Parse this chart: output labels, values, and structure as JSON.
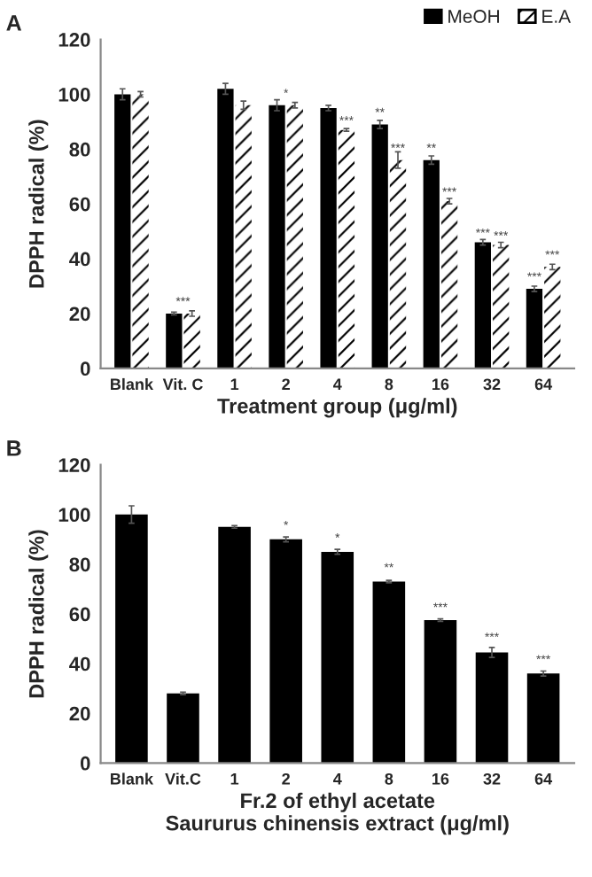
{
  "chart_data": [
    {
      "type": "bar",
      "xlabel": "Treatment group (μg/ml)",
      "ylabel": "DPPH radical (%)",
      "categories": [
        "Blank",
        "Vit. C",
        "1",
        "2",
        "4",
        "8",
        "16",
        "32",
        "64"
      ],
      "series": [
        {
          "name": "MeOH",
          "color": "#000000",
          "values": [
            100,
            20,
            102,
            96,
            95,
            89,
            76,
            46,
            29
          ],
          "errors": [
            2,
            0.5,
            2,
            2,
            1,
            1.5,
            1.5,
            1,
            1
          ]
        },
        {
          "name": "E.A",
          "color": "#ffffff",
          "values": [
            100,
            20,
            96,
            96,
            87,
            76,
            61,
            45,
            37
          ],
          "errors": [
            1,
            1,
            1.5,
            1,
            0.5,
            3,
            1,
            1,
            1
          ]
        }
      ],
      "ylim": [
        0,
        120
      ],
      "yticks": [
        0,
        20,
        40,
        60,
        80,
        100,
        120
      ],
      "grid": false,
      "legend": "top right",
      "annotations": [
        "A",
        {
          "text": "***",
          "x": "Vit. C",
          "y": 22
        },
        {
          "text": "*",
          "x": "2",
          "y": 98
        },
        {
          "text": "***",
          "x": "4",
          "y": 88
        },
        {
          "text": "**",
          "x": "8",
          "y": 91
        },
        {
          "text": "***",
          "x": "8",
          "y": 78
        },
        {
          "text": "**",
          "x": "16",
          "y": 78
        },
        {
          "text": "***",
          "x": "16",
          "y": 62
        },
        {
          "text": "***",
          "x": "32",
          "y": 47
        },
        {
          "text": "***",
          "x": "32",
          "y": 46
        },
        {
          "text": "***",
          "x": "64",
          "y": 31
        },
        {
          "text": "***",
          "x": "64",
          "y": 39
        }
      ]
    },
    {
      "type": "bar",
      "xlabel": "Fr.2 of ethyl acetate\nSaururus chinensis extract (μg/ml)",
      "ylabel": "DPPH radical (%)",
      "categories": [
        "Blank",
        "Vit.C",
        "1",
        "2",
        "4",
        "8",
        "16",
        "32",
        "64"
      ],
      "series": [
        {
          "color": "#000000",
          "values": [
            100,
            28,
            95,
            90,
            85,
            73,
            57.5,
            44.5,
            36
          ],
          "errors": [
            3.5,
            0.5,
            0.5,
            1,
            1,
            0.5,
            0.5,
            2,
            1
          ]
        }
      ],
      "ylim": [
        0,
        120
      ],
      "yticks": [
        0,
        20,
        40,
        60,
        80,
        100,
        120
      ],
      "grid": false,
      "legend": false,
      "annotations": [
        "B",
        {
          "text": "*",
          "x": "2",
          "y": 93
        },
        {
          "text": "*",
          "x": "4",
          "y": 88
        },
        {
          "text": "**",
          "x": "8",
          "y": 76
        },
        {
          "text": "***",
          "x": "16",
          "y": 60
        },
        {
          "text": "***",
          "x": "32",
          "y": 48
        },
        {
          "text": "***",
          "x": "64",
          "y": 39
        }
      ]
    }
  ]
}
